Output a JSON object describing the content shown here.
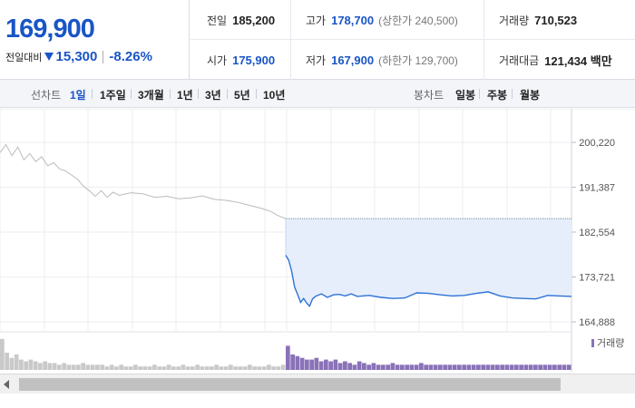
{
  "summary": {
    "current_price": "169,900",
    "change_label": "전일대비",
    "change_direction_icon": "down-triangle-icon",
    "change_amount": "15,300",
    "change_percent": "-8.26%",
    "rows": [
      [
        {
          "label": "전일",
          "value": "185,200",
          "highlight": false
        },
        {
          "label": "고가",
          "value": "178,700",
          "highlight": true,
          "limit": "(상한가 240,500)"
        },
        {
          "label": "거래량",
          "value": "710,523",
          "highlight": false
        }
      ],
      [
        {
          "label": "시가",
          "value": "175,900",
          "highlight": true
        },
        {
          "label": "저가",
          "value": "167,900",
          "highlight": true,
          "limit": "(하한가 129,700)"
        },
        {
          "label": "거래대금",
          "value": "121,434 백만",
          "highlight": false
        }
      ]
    ]
  },
  "period_bar": {
    "line_chart_label": "선차트",
    "line_tabs": [
      "1일",
      "1주일",
      "3개월",
      "1년",
      "3년",
      "5년",
      "10년"
    ],
    "active_line_tab": "1일",
    "candle_chart_label": "봉차트",
    "candle_tabs": [
      "일봉",
      "주봉",
      "월봉"
    ]
  },
  "chart_data": {
    "type": "line",
    "y_ticks": [
      "200,220",
      "191,387",
      "182,554",
      "173,721",
      "164,888"
    ],
    "ylim": [
      164888,
      200220
    ],
    "reference_value": 185200,
    "series": [
      {
        "name": "previous_day",
        "color": "#bbbbbb",
        "values": [
          [
            0,
            198200
          ],
          [
            2,
            199800
          ],
          [
            4,
            197600
          ],
          [
            6,
            199300
          ],
          [
            8,
            196800
          ],
          [
            10,
            198000
          ],
          [
            12,
            196400
          ],
          [
            14,
            197400
          ],
          [
            16,
            195600
          ],
          [
            18,
            196200
          ],
          [
            20,
            195000
          ],
          [
            22,
            194600
          ],
          [
            24,
            193800
          ],
          [
            26,
            193000
          ],
          [
            28,
            191600
          ],
          [
            30,
            190700
          ],
          [
            32,
            189600
          ],
          [
            34,
            190700
          ],
          [
            36,
            189400
          ],
          [
            38,
            190400
          ],
          [
            40,
            189800
          ],
          [
            44,
            190300
          ],
          [
            48,
            190100
          ],
          [
            52,
            189400
          ],
          [
            56,
            189600
          ],
          [
            60,
            189100
          ],
          [
            64,
            189300
          ],
          [
            68,
            189700
          ],
          [
            72,
            189000
          ],
          [
            76,
            188800
          ],
          [
            80,
            188400
          ],
          [
            84,
            187800
          ],
          [
            88,
            187200
          ],
          [
            91,
            186600
          ],
          [
            93,
            185900
          ],
          [
            96,
            185200
          ]
        ]
      },
      {
        "name": "today",
        "color": "#2e72d6",
        "values": [
          [
            96,
            178000
          ],
          [
            97,
            177000
          ],
          [
            98,
            174800
          ],
          [
            99,
            171700
          ],
          [
            100,
            170300
          ],
          [
            101,
            168700
          ],
          [
            102,
            169500
          ],
          [
            103,
            168600
          ],
          [
            104,
            168000
          ],
          [
            105,
            169400
          ],
          [
            106,
            169900
          ],
          [
            108,
            170400
          ],
          [
            110,
            169700
          ],
          [
            112,
            170200
          ],
          [
            114,
            170300
          ],
          [
            116,
            170000
          ],
          [
            118,
            170400
          ],
          [
            120,
            169900
          ],
          [
            124,
            170100
          ],
          [
            128,
            169700
          ],
          [
            132,
            169500
          ],
          [
            136,
            169600
          ],
          [
            140,
            170600
          ],
          [
            144,
            170500
          ],
          [
            148,
            170200
          ],
          [
            152,
            170000
          ],
          [
            156,
            170100
          ],
          [
            160,
            170500
          ],
          [
            164,
            170800
          ],
          [
            168,
            170000
          ],
          [
            172,
            169600
          ],
          [
            176,
            169500
          ],
          [
            180,
            169400
          ],
          [
            184,
            170100
          ],
          [
            188,
            170000
          ],
          [
            192,
            169900
          ]
        ]
      }
    ],
    "volume_label": "거래량",
    "volume_color": "#8a72b8",
    "volume": {
      "previous_day": [
        18,
        10,
        7,
        9,
        6,
        5,
        6,
        5,
        4,
        5,
        4,
        4,
        3,
        4,
        3,
        3,
        3,
        4,
        3,
        3,
        3,
        3,
        2,
        3,
        2,
        3,
        2,
        2,
        3,
        2,
        2,
        2,
        3,
        2,
        2,
        3,
        2,
        2,
        3,
        2,
        2,
        3,
        2,
        2,
        2,
        3,
        2,
        2,
        3,
        2,
        2,
        2,
        3,
        2,
        2,
        2,
        3,
        2,
        2,
        3
      ],
      "today": [
        14,
        9,
        8,
        7,
        6,
        6,
        7,
        5,
        6,
        5,
        6,
        4,
        5,
        4,
        3,
        5,
        4,
        3,
        4,
        3,
        3,
        3,
        4,
        3,
        3,
        3,
        3,
        3,
        4,
        3,
        3,
        3,
        3,
        3,
        3,
        3,
        3,
        3,
        3,
        3,
        3,
        3,
        3,
        3,
        3,
        3,
        3,
        3,
        3,
        3,
        3,
        3,
        3,
        3,
        3,
        3,
        3,
        3,
        3,
        3
      ]
    }
  },
  "scrollbar": {
    "left_arrow_icon": "scroll-left-arrow-icon"
  }
}
